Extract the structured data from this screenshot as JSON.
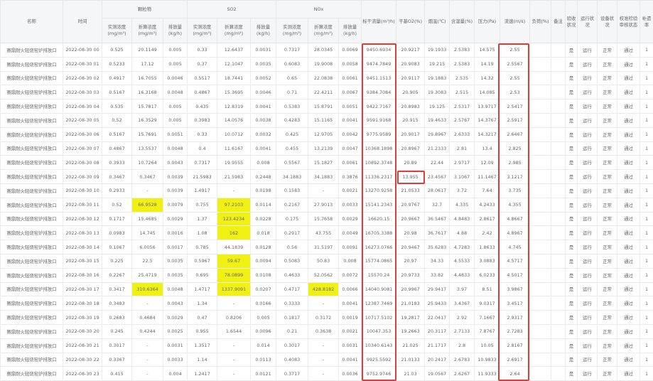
{
  "headers": {
    "name": "名称",
    "time": "时间",
    "pm": "颗粒物",
    "so2": "SO2",
    "nox": "NOx",
    "measured": "实测浓度(mg/m³)",
    "converted": "折算浓度(mg/m³)",
    "emission": "排放量(kg/h)",
    "flow": "标干流量(m³/h)",
    "o2": "干基O2(%)",
    "temp": "烟温(℃)",
    "moisture": "含湿量(%)",
    "pressure": "压力(Pa)",
    "velocity": "流速(m/s)",
    "load": "负荷(%)",
    "remark": "备注",
    "accept": "验收状况",
    "run": "运行状况",
    "equip": "设备状况",
    "calib": "校准检验审核状态",
    "rate": "补遗率"
  },
  "highlight_color": "#f0f013",
  "alert_border_color": "#d9403a",
  "rows": [
    [
      "赛鼎耐火轻烧窑炉排放口",
      "2022-08-30 00",
      "0.525",
      "20.1149",
      "0.005",
      "0.33",
      "12.6437",
      "0.0031",
      "0.7317",
      "28.0345",
      "0.0069",
      "9450.6934",
      "20.9217",
      "19.1933",
      "2.5383",
      "14.575",
      "2.55",
      "",
      "",
      "是",
      "运行",
      "正常",
      "通过",
      "1"
    ],
    [
      "赛鼎耐火轻烧窑炉排放口",
      "2022-08-30 01",
      "0.5233",
      "17.12",
      "0.005",
      "0.37",
      "12.1047",
      "0.0035",
      "0.6083",
      "19.9008",
      "0.0058",
      "9474.7849",
      "20.9083",
      "19.215",
      "2.5383",
      "14.19",
      "2.5567",
      "",
      "",
      "是",
      "运行",
      "正常",
      "通过",
      "1"
    ],
    [
      "赛鼎耐火轻烧窑炉排放口",
      "2022-08-30 02",
      "0.4917",
      "16.7055",
      "0.0046",
      "0.5517",
      "18.7441",
      "0.0052",
      "0.65",
      "22.0838",
      "0.0061",
      "9451.1513",
      "20.9117",
      "19.1883",
      "2.535",
      "14.32",
      "2.55",
      "",
      "",
      "是",
      "运行",
      "正常",
      "通过",
      "1"
    ],
    [
      "赛鼎耐火轻烧窑炉排放口",
      "2022-08-30 03",
      "0.5167",
      "16.3168",
      "0.0048",
      "0.4867",
      "15.3695",
      "0.0046",
      "0.71",
      "22.4211",
      "0.0067",
      "9384.7084",
      "20.905",
      "19.3083",
      "2.515",
      "14.085",
      "2.53",
      "",
      "",
      "是",
      "运行",
      "正常",
      "通过",
      "1"
    ],
    [
      "赛鼎耐火轻烧窑炉排放口",
      "2022-08-30 04",
      "0.535",
      "15.7817",
      "0.005",
      "0.435",
      "12.8319",
      "0.0041",
      "0.5383",
      "15.8791",
      "0.0051",
      "9422.7167",
      "20.8983",
      "19.125",
      "2.5317",
      "13.9717",
      "2.5417",
      "",
      "",
      "是",
      "运行",
      "正常",
      "通过",
      "1"
    ],
    [
      "赛鼎耐火轻烧窑炉排放口",
      "2022-08-30 05",
      "0.52",
      "16.3529",
      "0.005",
      "0.3983",
      "14.0576",
      "0.0038",
      "0.4283",
      "15.1165",
      "0.0041",
      "9591.9168",
      "20.915",
      "19.4633",
      "2.5767",
      "14.3767",
      "2.5917",
      "",
      "",
      "是",
      "运行",
      "正常",
      "通过",
      "1"
    ],
    [
      "赛鼎耐火轻烧窑炉排放口",
      "2022-08-30 06",
      "0.5167",
      "15.7691",
      "0.0051",
      "0.33",
      "10.0712",
      "0.0032",
      "0.425",
      "12.9705",
      "0.0042",
      "9775.9589",
      "20.9017",
      "19.8967",
      "2.6333",
      "14.3217",
      "2.6467",
      "",
      "",
      "是",
      "运行",
      "正常",
      "通过",
      "1"
    ],
    [
      "赛鼎耐火轻烧窑炉排放口",
      "2022-08-30 07",
      "0.4867",
      "13.5537",
      "0.0048",
      "0.4",
      "11.6167",
      "0.0041",
      "0.455",
      "13.2139",
      "0.0047",
      "10368.1898",
      "20.8967",
      "21.2333",
      "2.81",
      "13.4",
      "2.825",
      "",
      "",
      "是",
      "运行",
      "正常",
      "通过",
      "1"
    ],
    [
      "赛鼎耐火轻烧窑炉排放口",
      "2022-08-30 08",
      "0.3933",
      "10.7264",
      "0.0043",
      "0.7317",
      "19.9555",
      "0.008",
      "0.5567",
      "15.1827",
      "0.0061",
      "10892.3748",
      "20.89",
      "22.44",
      "2.9717",
      "12.09",
      "2.985",
      "",
      "",
      "是",
      "运行",
      "正常",
      "通过",
      "1"
    ],
    [
      "赛鼎耐火轻烧窑炉排放口",
      "2022-08-30 09",
      "0.3467",
      "0.3467",
      "0.0039",
      "21.5983",
      "21.5983",
      "0.2448",
      "34.1883",
      "34.1883",
      "0.3876",
      "11336.2317",
      "13.955",
      "23.4567",
      "3.1067",
      "11.1467",
      "3.1217",
      "",
      "",
      "是",
      "运行",
      "正常",
      "通过",
      "1"
    ],
    [
      "赛鼎耐火轻烧窑炉排放口",
      "2022-08-30 10",
      "0.2933",
      "-",
      "0.0039",
      "1.4917",
      "-",
      "0.0198",
      "0.1583",
      "-",
      "0.0021",
      "13270.9258",
      "21.0533",
      "28.0617",
      "3.72",
      "7.64",
      "3.735",
      "",
      "",
      "是",
      "运行",
      "正常",
      "通过",
      "1"
    ],
    [
      "赛鼎耐火轻烧窑炉排放口",
      "2022-08-30 11",
      "0.52",
      "66.9528",
      "0.0079",
      "0.755",
      "97.2103",
      "0.0114",
      "0.2167",
      "27.9013",
      "0.0033",
      "15141.2343",
      "20.9767",
      "32.7",
      "4.335",
      "4.2433",
      "4.355",
      "",
      "",
      "是",
      "运行",
      "正常",
      "通过",
      "1"
    ],
    [
      "赛鼎耐火轻烧窑炉排放口",
      "2022-08-30 12",
      "0.1717",
      "15.4685",
      "0.0029",
      "1.37",
      "123.4234",
      "0.0228",
      "0.175",
      "15.7658",
      "0.0029",
      "16620.15",
      "20.9667",
      "36.5467",
      "4.8483",
      "2.8617",
      "4.8667",
      "",
      "",
      "是",
      "运行",
      "正常",
      "通过",
      "1"
    ],
    [
      "赛鼎耐火轻烧窑炉排放口",
      "2022-08-30 13",
      "0.0983",
      "14.745",
      "0.0016",
      "1.08",
      "162",
      "0.018",
      "0.2917",
      "43.755",
      "0.0049",
      "16705.3388",
      "20.98",
      "36.7617",
      "4.88",
      "2.42",
      "4.8967",
      "",
      "",
      "是",
      "运行",
      "正常",
      "通过",
      "1"
    ],
    [
      "赛鼎耐火轻烧窑炉排放口",
      "2022-08-30 14",
      "0.1067",
      "6.0056",
      "0.0017",
      "0.785",
      "44.1839",
      "0.0128",
      "0.56",
      "31.5197",
      "0.0091",
      "16273.0766",
      "20.9467",
      "35.6283",
      "4.7283",
      "1.8633",
      "4.745",
      "",
      "",
      "是",
      "运行",
      "正常",
      "通过",
      "1"
    ],
    [
      "赛鼎耐火轻烧窑炉排放口",
      "2022-08-30 15",
      "0.225",
      "22.5",
      "0.0035",
      "0.5967",
      "59.67",
      "0.0094",
      "0.5083",
      "50.83",
      "0.008",
      "15774.0865",
      "20.97",
      "34.33",
      "4.5533",
      "3.0883",
      "4.5717",
      "",
      "",
      "是",
      "运行",
      "正常",
      "通过",
      "1"
    ],
    [
      "赛鼎耐火轻烧窑炉排放口",
      "2022-08-30 16",
      "0.2267",
      "25.4719",
      "0.0035",
      "0.695",
      "78.0899",
      "0.0108",
      "0.4633",
      "52.0562",
      "0.0072",
      "15570.24",
      "20.9733",
      "33.82",
      "4.4833",
      "6.0233",
      "4.5017",
      "",
      "",
      "是",
      "运行",
      "正常",
      "通过",
      "1"
    ],
    [
      "赛鼎耐火轻烧窑炉排放口",
      "2022-08-30 17",
      "0.3417",
      "310.6364",
      "0.0048",
      "1.4717",
      "1337.9091",
      "0.0207",
      "0.4717",
      "428.8182",
      "0.0066",
      "14040.9081",
      "20.9967",
      "29.9417",
      "3.97",
      "8.51",
      "3.9867",
      "",
      "",
      "是",
      "运行",
      "正常",
      "通过",
      "1"
    ],
    [
      "赛鼎耐火轻烧窑炉排放口",
      "2022-08-30 18",
      "0.3483",
      "-",
      "0.0043",
      "1.34",
      "-",
      "0.0166",
      "0.3333",
      "-",
      "0.0041",
      "12387.7469",
      "21.0183",
      "25.9433",
      "3.4367",
      "9.0317",
      "3.4517",
      "",
      "",
      "是",
      "运行",
      "正常",
      "通过",
      "1"
    ],
    [
      "赛鼎耐火轻烧窑炉排放口",
      "2022-08-30 19",
      "0.2683",
      "0.4684",
      "0.0029",
      "0.47",
      "0.8206",
      "0.005",
      "0.1817",
      "0.3172",
      "0.0019",
      "10717.5102",
      "19.2817",
      "22.0417",
      "2.92",
      "7.1667",
      "2.9317",
      "",
      "",
      "是",
      "运行",
      "正常",
      "通过",
      "1"
    ],
    [
      "赛鼎耐火轻烧窑炉排放口",
      "2022-08-30 20",
      "0.245",
      "0.4244",
      "0.0025",
      "0.955",
      "1.6544",
      "0.0096",
      "0.21",
      "0.3638",
      "0.0021",
      "10047.353",
      "19.2663",
      "20.3117",
      "2.7133",
      "7.8767",
      "2.7283",
      "",
      "",
      "是",
      "运行",
      "正常",
      "通过",
      "1"
    ],
    [
      "赛鼎耐火轻烧窑炉排放口",
      "2022-08-30 21",
      "0.3017",
      "-",
      "0.0031",
      "1.3517",
      "-",
      "0.014",
      "0.3017",
      "-",
      "0.0031",
      "10340.6143",
      "21.025",
      "21.1717",
      "2.8",
      "10.05",
      "2.8167",
      "",
      "",
      "是",
      "运行",
      "正常",
      "通过",
      "1"
    ],
    [
      "赛鼎耐火轻烧窑炉排放口",
      "2022-08-30 22",
      "0.3367",
      "-",
      "0.0033",
      "1.14",
      "-",
      "0.0113",
      "0.4083",
      "-",
      "0.0041",
      "9925.5592",
      "21.0133",
      "20.2417",
      "2.6783",
      "10.9833",
      "2.6917",
      "",
      "",
      "是",
      "运行",
      "正常",
      "通过",
      "1"
    ],
    [
      "赛鼎耐火轻烧窑炉排放口",
      "2022-08-30 23",
      "0.415",
      "-",
      "0.004",
      "1.2417",
      "-",
      "0.0121",
      "0.3717",
      "-",
      "0.0036",
      "9752.9746",
      "21.03",
      "19.0567",
      "2.6267",
      "11.9333",
      "2.64",
      "",
      "",
      "是",
      "运行",
      "正常",
      "通过",
      "1"
    ]
  ],
  "highlighted_cells": [
    [
      11,
      3
    ],
    [
      11,
      6
    ],
    [
      12,
      6
    ],
    [
      13,
      6
    ],
    [
      15,
      6
    ],
    [
      16,
      6
    ],
    [
      17,
      3
    ],
    [
      17,
      6
    ],
    [
      17,
      9
    ]
  ],
  "alert_boxes": [
    "flow-column",
    "velocity-column",
    "o2-row-09"
  ]
}
